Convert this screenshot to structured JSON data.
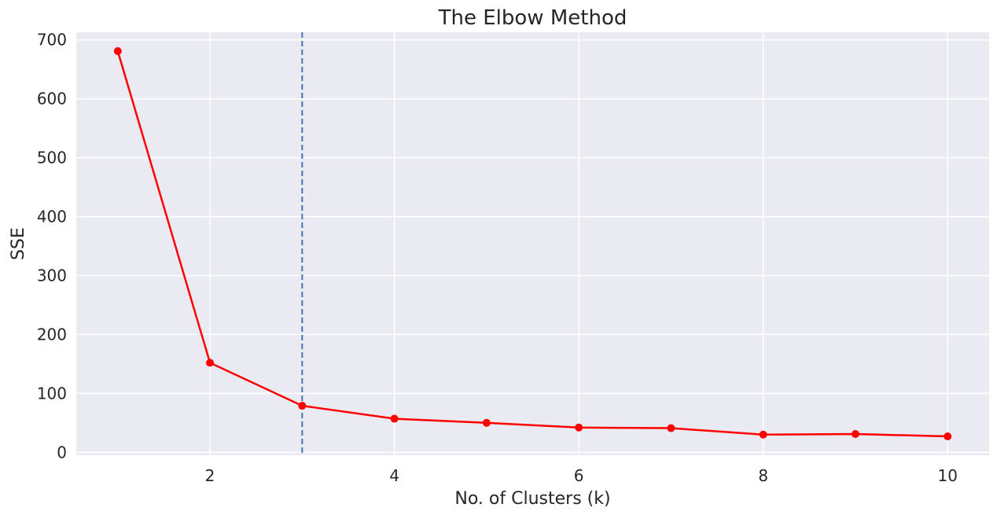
{
  "chart_data": {
    "type": "line",
    "title": "The Elbow Method",
    "xlabel": "No. of Clusters (k)",
    "ylabel": "SSE",
    "x": [
      1,
      2,
      3,
      4,
      5,
      6,
      7,
      8,
      9,
      10
    ],
    "series": [
      {
        "values": [
          681,
          152,
          79,
          57,
          50,
          42,
          41,
          30,
          31,
          27
        ],
        "color": "#ff0000"
      }
    ],
    "xticks": [
      2,
      4,
      6,
      8,
      10
    ],
    "xtick_labels": [
      "2",
      "4",
      "6",
      "8",
      "10"
    ],
    "yticks": [
      0,
      100,
      200,
      300,
      400,
      500,
      600,
      700
    ],
    "ytick_labels": [
      "0",
      "100",
      "200",
      "300",
      "400",
      "500",
      "600",
      "700"
    ],
    "xlim": [
      0.55,
      10.45
    ],
    "ylim": [
      -5,
      713
    ],
    "vline": {
      "x": 3,
      "color": "#4c72b0",
      "style": "dashed"
    },
    "grid": true,
    "background": "#eaeaf2",
    "grid_color": "#ffffff"
  }
}
